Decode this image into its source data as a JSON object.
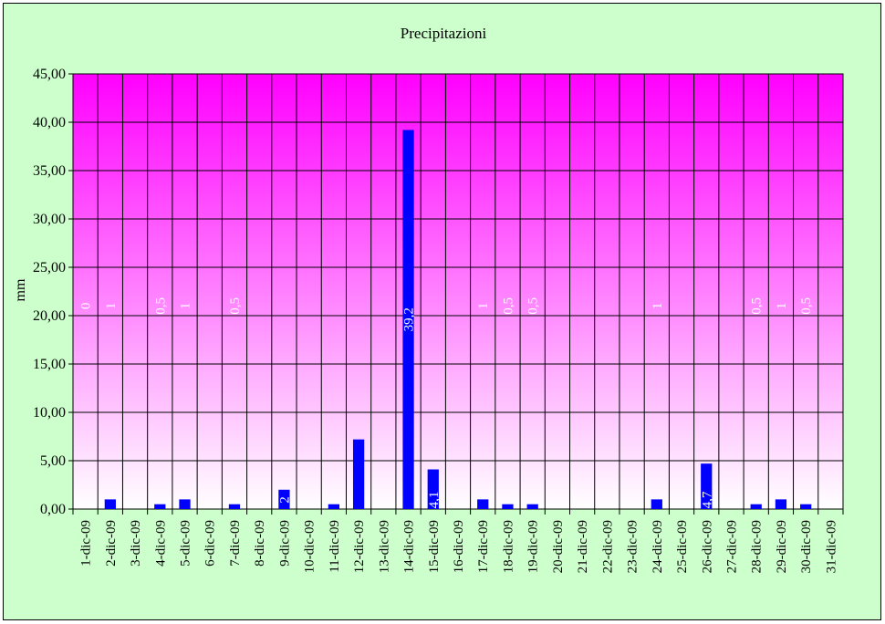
{
  "chart_data": {
    "type": "bar",
    "title": "Precipitazioni",
    "xlabel": "",
    "ylabel": "mm",
    "ylim": [
      0,
      45
    ],
    "ytick_step": 5,
    "ytick_labels": [
      "0,00",
      "5,00",
      "10,00",
      "15,00",
      "20,00",
      "25,00",
      "30,00",
      "35,00",
      "40,00",
      "45,00"
    ],
    "grid": true,
    "legend": "none",
    "categories": [
      "1-dic-09",
      "2-dic-09",
      "3-dic-09",
      "4-dic-09",
      "5-dic-09",
      "6-dic-09",
      "7-dic-09",
      "8-dic-09",
      "9-dic-09",
      "10-dic-09",
      "11-dic-09",
      "12-dic-09",
      "13-dic-09",
      "14-dic-09",
      "15-dic-09",
      "16-dic-09",
      "17-dic-09",
      "18-dic-09",
      "19-dic-09",
      "20-dic-09",
      "21-dic-09",
      "22-dic-09",
      "23-dic-09",
      "24-dic-09",
      "25-dic-09",
      "26-dic-09",
      "27-dic-09",
      "28-dic-09",
      "29-dic-09",
      "30-dic-09",
      "31-dic-09"
    ],
    "values": [
      0,
      1,
      null,
      0.5,
      1,
      null,
      0.5,
      null,
      2,
      null,
      0.5,
      7.2,
      null,
      39.2,
      4.1,
      null,
      1,
      0.5,
      0.5,
      null,
      null,
      null,
      null,
      1,
      null,
      4.7,
      null,
      0.5,
      1,
      0.5,
      null
    ],
    "data_labels": [
      "0",
      "1",
      "",
      "0,5",
      "1",
      "",
      "0,5",
      "",
      "2",
      "",
      "",
      "",
      "",
      "39,2",
      "4,1",
      "",
      "1",
      "0,5",
      "0,5",
      "",
      "",
      "",
      "",
      "1",
      "",
      "4,7",
      "",
      "0,5",
      "1",
      "0,5",
      ""
    ],
    "colors": {
      "bar": "#0000ff",
      "frame_bg": "#ccffcc",
      "plot_gradient_top": "#ff00ff",
      "plot_gradient_bottom": "#ffffff",
      "grid": "#000000",
      "data_label": "#ffffff"
    }
  }
}
